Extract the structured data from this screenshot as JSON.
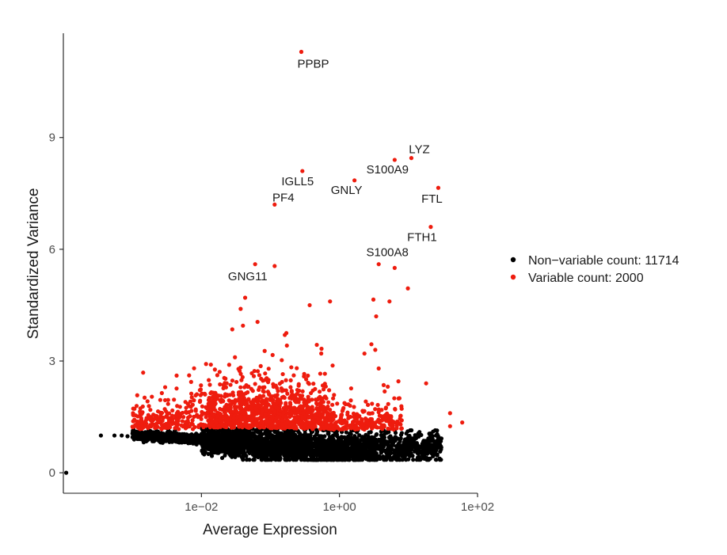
{
  "chart_data": {
    "type": "scatter",
    "title": "",
    "xlabel": "Average Expression",
    "ylabel": "Standardized Variance",
    "x_scale": "log10",
    "xlim": [
      0.0001,
      100
    ],
    "ylim": [
      -0.55,
      11.8
    ],
    "x_ticks": [
      0.01,
      1,
      100
    ],
    "x_tick_labels": [
      "1e−02",
      "1e+00",
      "1e+02"
    ],
    "y_ticks": [
      0,
      3,
      6,
      9
    ],
    "y_tick_labels": [
      "0",
      "3",
      "6",
      "9"
    ],
    "grid": false,
    "legend_position": "right",
    "series": [
      {
        "name": "Non−variable count: 11714",
        "color": "#000000"
      },
      {
        "name": "Variable count: 2000",
        "color": "#ee1c0e"
      }
    ],
    "labeled_points": [
      {
        "label": "PPBP",
        "x": 0.28,
        "y": 11.3
      },
      {
        "label": "LYZ",
        "x": 11,
        "y": 8.45
      },
      {
        "label": "S100A9",
        "x": 6.3,
        "y": 8.4
      },
      {
        "label": "IGLL5",
        "x": 0.29,
        "y": 8.1
      },
      {
        "label": "GNLY",
        "x": 1.65,
        "y": 7.85
      },
      {
        "label": "FTL",
        "x": 27,
        "y": 7.65
      },
      {
        "label": "PF4",
        "x": 0.115,
        "y": 7.2
      },
      {
        "label": "FTH1",
        "x": 21,
        "y": 6.6
      },
      {
        "label": "S100A8",
        "x": 3.7,
        "y": 5.6
      },
      {
        "label": "GNG11",
        "x": 0.115,
        "y": 5.55
      }
    ],
    "extra_variable_points": [
      {
        "x": 0.06,
        "y": 5.6
      },
      {
        "x": 6.3,
        "y": 5.5
      },
      {
        "x": 9.8,
        "y": 4.95
      },
      {
        "x": 0.043,
        "y": 4.7
      },
      {
        "x": 0.037,
        "y": 4.4
      },
      {
        "x": 3.1,
        "y": 4.65
      },
      {
        "x": 5.3,
        "y": 4.6
      },
      {
        "x": 0.73,
        "y": 4.6
      },
      {
        "x": 0.37,
        "y": 4.5
      },
      {
        "x": 3.4,
        "y": 4.2
      },
      {
        "x": 0.065,
        "y": 4.05
      },
      {
        "x": 0.04,
        "y": 3.95
      },
      {
        "x": 0.028,
        "y": 3.85
      },
      {
        "x": 2.9,
        "y": 3.45
      },
      {
        "x": 3.3,
        "y": 3.3
      },
      {
        "x": 0.17,
        "y": 3.75
      },
      {
        "x": 2.3,
        "y": 3.2
      },
      {
        "x": 3.7,
        "y": 2.8
      },
      {
        "x": 18,
        "y": 2.4
      },
      {
        "x": 7.4,
        "y": 2.0
      },
      {
        "x": 40,
        "y": 1.6
      },
      {
        "x": 60,
        "y": 1.35
      },
      {
        "x": 40,
        "y": 1.25
      },
      {
        "x": 3.7,
        "y": 1.7
      },
      {
        "x": 6.4,
        "y": 1.7
      }
    ],
    "extra_nonvariable_points": [
      {
        "x": 0.00011,
        "y": 0.0
      },
      {
        "x": 0.00035,
        "y": 1.0
      },
      {
        "x": 0.00055,
        "y": 1.0
      },
      {
        "x": 0.0007,
        "y": 1.0
      },
      {
        "x": 0.00085,
        "y": 0.98
      },
      {
        "x": 30,
        "y": 0.92
      },
      {
        "x": 25,
        "y": 1.0
      },
      {
        "x": 20,
        "y": 1.05
      }
    ],
    "bulk_nonvariable": {
      "n": 3200,
      "x_range": [
        0.001,
        30
      ]
    },
    "bulk_variable": {
      "n": 1500,
      "x_range": [
        0.001,
        8
      ]
    }
  }
}
